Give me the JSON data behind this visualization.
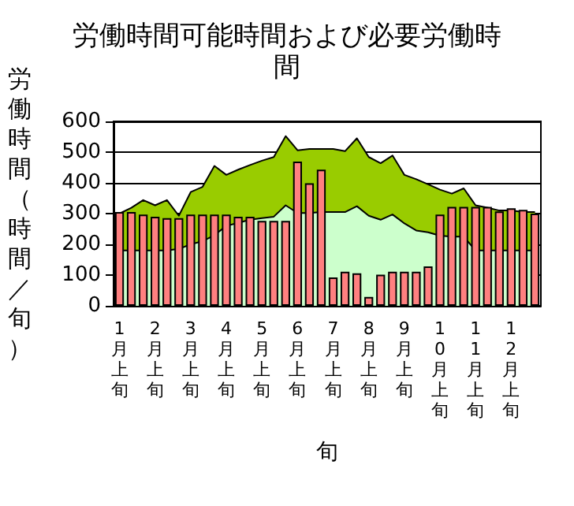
{
  "chart_data": {
    "type": "bar",
    "title": "労働時間可能時間および必要労働時間",
    "xlabel": "旬",
    "ylabel": "労働時間（時間／旬）",
    "categories": [
      "1月上旬",
      null,
      null,
      "2月上旬",
      null,
      null,
      "3月上旬",
      null,
      null,
      "4月上旬",
      null,
      null,
      "5月上旬",
      null,
      null,
      "6月上旬",
      null,
      null,
      "7月上旬",
      null,
      null,
      "8月上旬",
      null,
      null,
      "9月上旬",
      null,
      null,
      "10月上旬",
      null,
      null,
      "11月上旬",
      null,
      null,
      "12月上旬",
      null,
      null
    ],
    "series": [
      {
        "type": "area",
        "color": "#99cc00",
        "values": [
          300,
          319,
          344,
          327,
          344,
          293,
          370,
          387,
          455,
          426,
          443,
          458,
          472,
          484,
          552,
          506,
          510,
          510,
          510,
          503,
          545,
          484,
          464,
          489,
          426,
          412,
          395,
          378,
          365,
          382,
          327,
          319,
          310,
          310,
          305,
          305
        ]
      },
      {
        "type": "area",
        "color": "#ccffcc",
        "values": [
          180,
          180,
          180,
          180,
          180,
          185,
          200,
          210,
          230,
          260,
          270,
          280,
          285,
          290,
          327,
          302,
          302,
          305,
          305,
          305,
          324,
          293,
          280,
          297,
          268,
          245,
          239,
          228,
          225,
          225,
          180,
          180,
          180,
          180,
          180,
          180
        ]
      },
      {
        "color": "#ff8080",
        "values": [
          305,
          305,
          297,
          290,
          285,
          285,
          297,
          297,
          297,
          297,
          290,
          290,
          276,
          276,
          276,
          469,
          399,
          443,
          92,
          111,
          106,
          29,
          101,
          111,
          111,
          111,
          128,
          297,
          322,
          322,
          322,
          322,
          307,
          317,
          312,
          300
        ]
      }
    ],
    "ylim": [
      0,
      600
    ],
    "yticks": [
      0,
      100,
      200,
      300,
      400,
      500,
      600
    ],
    "grid": true
  }
}
